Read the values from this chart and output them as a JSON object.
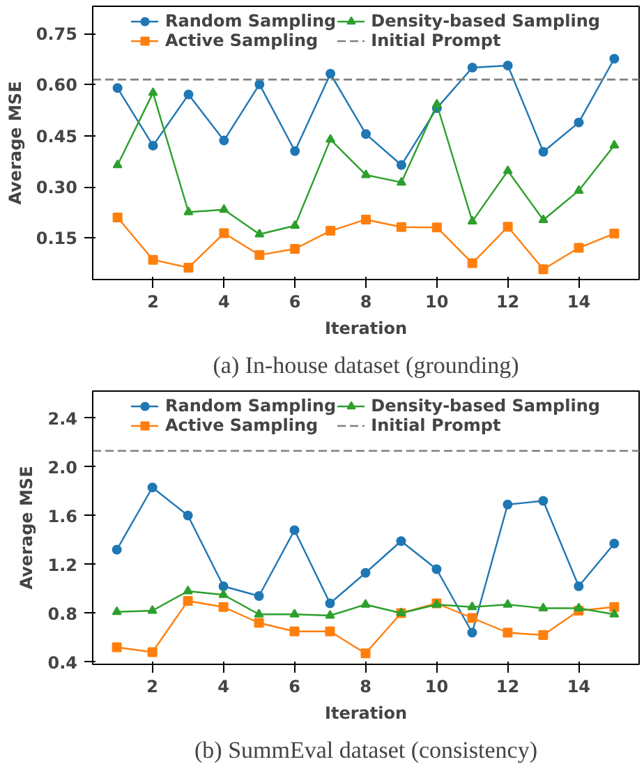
{
  "chart_data": [
    {
      "type": "line",
      "title": "(a) In-house dataset (grounding)",
      "xlabel": "Iteration",
      "ylabel": "Average MSE",
      "x": [
        1,
        2,
        3,
        4,
        5,
        6,
        7,
        8,
        9,
        10,
        11,
        12,
        13,
        14,
        15
      ],
      "xlim": [
        0.3,
        15.7
      ],
      "xticks": [
        2,
        4,
        6,
        8,
        10,
        12,
        14
      ],
      "ylim": [
        0.028,
        0.83
      ],
      "yticks": [
        0.15,
        {
          "value": 0.3,
          "label": "0.30"
        },
        0.45,
        {
          "value": 0.6,
          "label": "0.60"
        },
        0.75
      ],
      "series": [
        {
          "name": "Random Sampling",
          "color": "#1f77b4",
          "marker": "circle",
          "values": [
            0.59,
            0.421,
            0.571,
            0.436,
            0.601,
            0.405,
            0.632,
            0.455,
            0.364,
            0.531,
            0.65,
            0.656,
            0.403,
            0.489,
            0.676
          ]
        },
        {
          "name": "Active Sampling",
          "color": "#ff7f0e",
          "marker": "square",
          "values": [
            0.21,
            0.086,
            0.063,
            0.164,
            0.1,
            0.118,
            0.171,
            0.204,
            0.182,
            0.181,
            0.076,
            0.183,
            0.058,
            0.121,
            0.163
          ]
        },
        {
          "name": "Density-based Sampling",
          "color": "#2ca02c",
          "marker": "triangle",
          "values": [
            0.364,
            0.576,
            0.226,
            0.233,
            0.161,
            0.186,
            0.439,
            0.335,
            0.313,
            0.542,
            0.199,
            0.347,
            0.203,
            0.289,
            0.422
          ]
        }
      ],
      "ref_lines": [
        {
          "axis": "y",
          "value": 0.615,
          "label": "Initial Prompt",
          "color": "#808080",
          "line_style": "dashed"
        }
      ],
      "legend": "top",
      "grid": false
    },
    {
      "type": "line",
      "title": "(b) SummEval dataset (consistency)",
      "xlabel": "Iteration",
      "ylabel": "Average MSE",
      "x": [
        1,
        2,
        3,
        4,
        5,
        6,
        7,
        8,
        9,
        10,
        11,
        12,
        13,
        14,
        15
      ],
      "xlim": [
        0.32,
        15.7
      ],
      "xticks": [
        2,
        4,
        6,
        8,
        10,
        12,
        14
      ],
      "ylim": [
        0.38,
        2.62
      ],
      "yticks": [
        0.4,
        0.8,
        1.2,
        1.6,
        {
          "value": 2,
          "label": "2.0"
        },
        2.4
      ],
      "series": [
        {
          "name": "Random Sampling",
          "color": "#1f77b4",
          "marker": "circle",
          "values": [
            1.32,
            1.83,
            1.6,
            1.02,
            0.94,
            1.48,
            0.88,
            1.13,
            1.39,
            1.16,
            0.64,
            1.69,
            1.72,
            1.02,
            1.37
          ]
        },
        {
          "name": "Active Sampling",
          "color": "#ff7f0e",
          "marker": "square",
          "values": [
            0.52,
            0.48,
            0.9,
            0.85,
            0.72,
            0.65,
            0.65,
            0.47,
            0.8,
            0.88,
            0.76,
            0.64,
            0.62,
            0.82,
            0.85
          ]
        },
        {
          "name": "Density-based Sampling",
          "color": "#2ca02c",
          "marker": "triangle",
          "values": [
            0.81,
            0.82,
            0.98,
            0.95,
            0.79,
            0.79,
            0.78,
            0.87,
            0.8,
            0.87,
            0.85,
            0.87,
            0.84,
            0.84,
            0.79
          ]
        }
      ],
      "ref_lines": [
        {
          "axis": "y",
          "value": 2.13,
          "label": "Initial Prompt",
          "color": "#808080",
          "line_style": "dashed"
        }
      ],
      "legend": "top",
      "grid": false
    }
  ]
}
